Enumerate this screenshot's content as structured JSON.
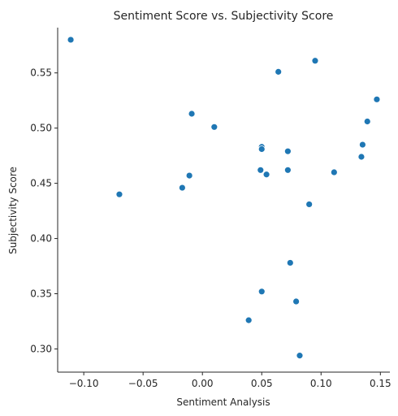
{
  "chart_data": {
    "type": "scatter",
    "title": "Sentiment Score vs. Subjectivity Score",
    "xlabel": "Sentiment Analysis",
    "ylabel": "Subjectivity Score",
    "xlim": [
      -0.122,
      0.158
    ],
    "ylim": [
      0.279,
      0.591
    ],
    "x_ticks": [
      -0.1,
      -0.05,
      0.0,
      0.05,
      0.1,
      0.15
    ],
    "x_tick_labels": [
      "−0.10",
      "−0.05",
      "0.00",
      "0.05",
      "0.10",
      "0.15"
    ],
    "y_ticks": [
      0.3,
      0.35,
      0.4,
      0.45,
      0.5,
      0.55
    ],
    "y_tick_labels": [
      "0.30",
      "0.35",
      "0.40",
      "0.45",
      "0.50",
      "0.55"
    ],
    "grid": false,
    "point_color": "#1f77b4",
    "points": [
      {
        "x": -0.111,
        "y": 0.58
      },
      {
        "x": -0.07,
        "y": 0.44
      },
      {
        "x": -0.017,
        "y": 0.446
      },
      {
        "x": -0.011,
        "y": 0.457
      },
      {
        "x": -0.009,
        "y": 0.513
      },
      {
        "x": 0.01,
        "y": 0.501
      },
      {
        "x": 0.039,
        "y": 0.326
      },
      {
        "x": 0.049,
        "y": 0.462
      },
      {
        "x": 0.05,
        "y": 0.483
      },
      {
        "x": 0.05,
        "y": 0.481
      },
      {
        "x": 0.05,
        "y": 0.352
      },
      {
        "x": 0.054,
        "y": 0.458
      },
      {
        "x": 0.064,
        "y": 0.551
      },
      {
        "x": 0.072,
        "y": 0.479
      },
      {
        "x": 0.072,
        "y": 0.462
      },
      {
        "x": 0.074,
        "y": 0.378
      },
      {
        "x": 0.079,
        "y": 0.343
      },
      {
        "x": 0.082,
        "y": 0.294
      },
      {
        "x": 0.09,
        "y": 0.431
      },
      {
        "x": 0.095,
        "y": 0.561
      },
      {
        "x": 0.111,
        "y": 0.46
      },
      {
        "x": 0.134,
        "y": 0.474
      },
      {
        "x": 0.135,
        "y": 0.485
      },
      {
        "x": 0.139,
        "y": 0.506
      },
      {
        "x": 0.147,
        "y": 0.526
      }
    ]
  }
}
